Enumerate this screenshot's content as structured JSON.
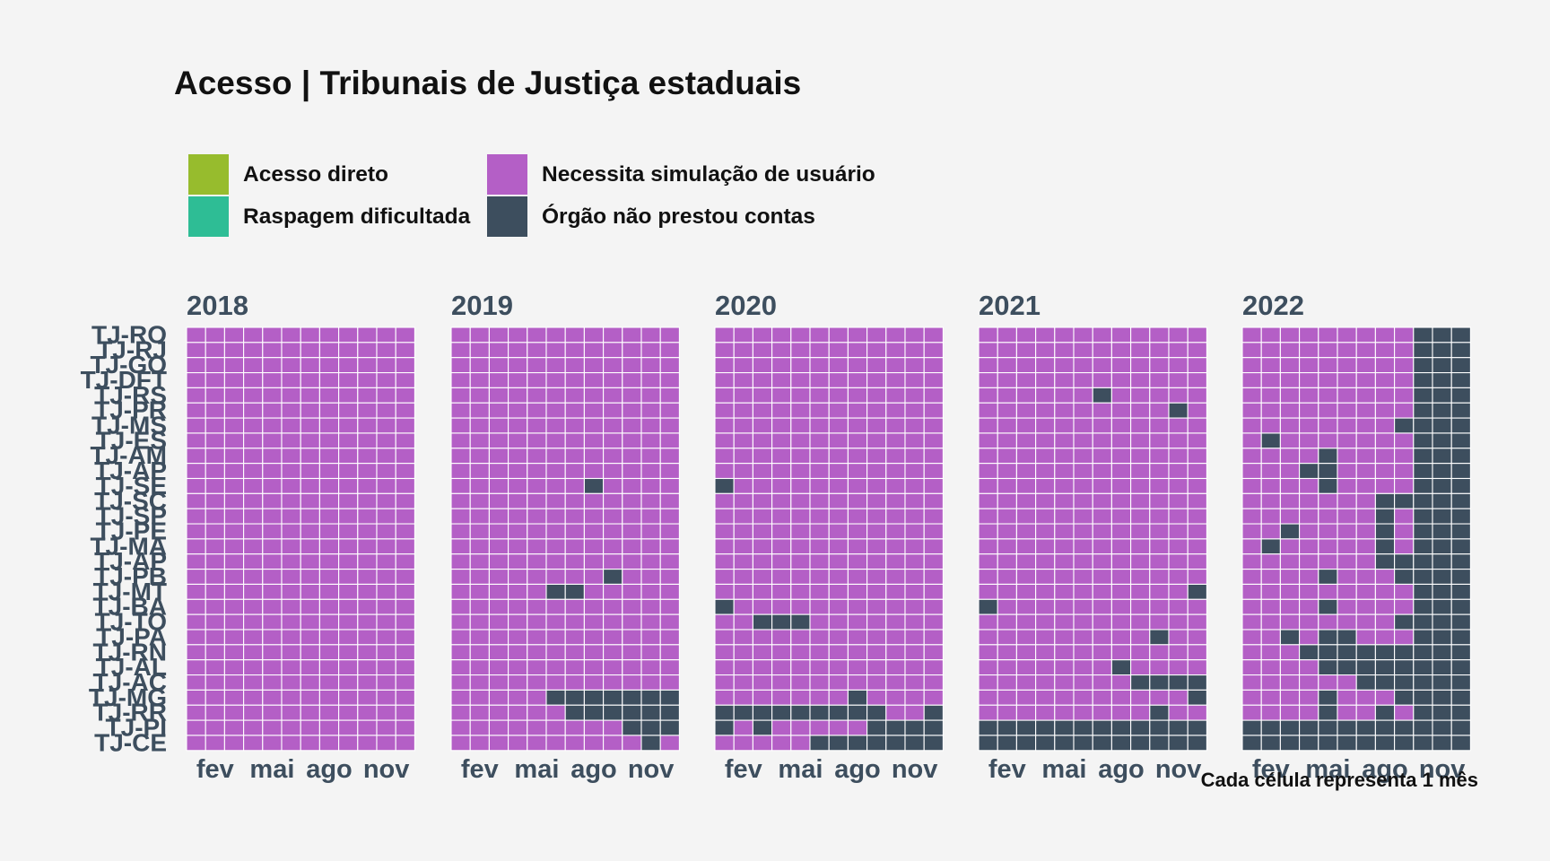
{
  "title": "Acesso | Tribunais de Justiça estaduais",
  "caption": "Cada célula representa 1 mês",
  "legend": [
    {
      "label": "Acesso direto",
      "color": "#97bc2d"
    },
    {
      "label": "Raspagem dificultada",
      "color": "#2ebd95"
    },
    {
      "label": "Necessita simulação de usuário",
      "color": "#b45fc6"
    },
    {
      "label": "Órgão não prestou contas",
      "color": "#3d4e5e"
    }
  ],
  "chart_data": {
    "type": "heatmap",
    "years": [
      "2018",
      "2019",
      "2020",
      "2021",
      "2022"
    ],
    "months": [
      1,
      2,
      3,
      4,
      5,
      6,
      7,
      8,
      9,
      10,
      11,
      12
    ],
    "x_tick_labels": [
      {
        "month": 2,
        "label": "fev"
      },
      {
        "month": 5,
        "label": "mai"
      },
      {
        "month": 8,
        "label": "ago"
      },
      {
        "month": 11,
        "label": "nov"
      }
    ],
    "rows": [
      "TJ-RO",
      "TJ-RJ",
      "TJ-GO",
      "TJ-DFT",
      "TJ-RS",
      "TJ-PR",
      "TJ-MS",
      "TJ-ES",
      "TJ-AM",
      "TJ-AP",
      "TJ-SE",
      "TJ-SC",
      "TJ-SP",
      "TJ-PE",
      "TJ-MA",
      "TJ-AP",
      "TJ-PB",
      "TJ-MT",
      "TJ-BA",
      "TJ-TO",
      "TJ-PA",
      "TJ-RN",
      "TJ-AL",
      "TJ-AC",
      "TJ-MG",
      "TJ-RR",
      "TJ-PI",
      "TJ-CE"
    ],
    "categories": {
      "necessita_simulacao": "Necessita simulação de usuário",
      "nao_prestou_contas": "Órgão não prestou contas"
    },
    "default_status": "necessita_simulacao",
    "nao_prestou_contas_cells": {
      "2019": [
        [
          10,
          8
        ],
        [
          17,
          6
        ],
        [
          17,
          7
        ],
        [
          16,
          9
        ],
        [
          24,
          6
        ],
        [
          24,
          7
        ],
        [
          24,
          8
        ],
        [
          24,
          9
        ],
        [
          24,
          10
        ],
        [
          24,
          11
        ],
        [
          24,
          12
        ],
        [
          25,
          7
        ],
        [
          25,
          8
        ],
        [
          25,
          9
        ],
        [
          25,
          10
        ],
        [
          25,
          11
        ],
        [
          25,
          12
        ],
        [
          26,
          10
        ],
        [
          26,
          11
        ],
        [
          26,
          12
        ],
        [
          27,
          11
        ]
      ],
      "2020": [
        [
          10,
          1
        ],
        [
          18,
          1
        ],
        [
          19,
          3
        ],
        [
          19,
          4
        ],
        [
          19,
          5
        ],
        [
          24,
          8
        ],
        [
          25,
          1
        ],
        [
          25,
          2
        ],
        [
          25,
          3
        ],
        [
          25,
          4
        ],
        [
          25,
          5
        ],
        [
          25,
          6
        ],
        [
          25,
          7
        ],
        [
          25,
          8
        ],
        [
          25,
          9
        ],
        [
          25,
          12
        ],
        [
          26,
          1
        ],
        [
          26,
          3
        ],
        [
          26,
          9
        ],
        [
          26,
          10
        ],
        [
          26,
          11
        ],
        [
          26,
          12
        ],
        [
          27,
          6
        ],
        [
          27,
          7
        ],
        [
          27,
          8
        ],
        [
          27,
          9
        ],
        [
          27,
          10
        ],
        [
          27,
          11
        ],
        [
          27,
          12
        ]
      ],
      "2021": [
        [
          4,
          7
        ],
        [
          5,
          11
        ],
        [
          17,
          12
        ],
        [
          18,
          1
        ],
        [
          20,
          10
        ],
        [
          22,
          8
        ],
        [
          23,
          9
        ],
        [
          23,
          10
        ],
        [
          23,
          11
        ],
        [
          23,
          12
        ],
        [
          24,
          12
        ],
        [
          25,
          10
        ],
        [
          26,
          1
        ],
        [
          26,
          2
        ],
        [
          26,
          3
        ],
        [
          26,
          4
        ],
        [
          26,
          5
        ],
        [
          26,
          6
        ],
        [
          26,
          7
        ],
        [
          26,
          8
        ],
        [
          26,
          9
        ],
        [
          26,
          10
        ],
        [
          26,
          11
        ],
        [
          26,
          12
        ],
        [
          27,
          1
        ],
        [
          27,
          2
        ],
        [
          27,
          3
        ],
        [
          27,
          4
        ],
        [
          27,
          5
        ],
        [
          27,
          6
        ],
        [
          27,
          7
        ],
        [
          27,
          8
        ],
        [
          27,
          9
        ],
        [
          27,
          10
        ],
        [
          27,
          11
        ],
        [
          27,
          12
        ]
      ],
      "2022": [
        [
          6,
          9
        ],
        [
          7,
          2
        ],
        [
          8,
          5
        ],
        [
          9,
          4
        ],
        [
          9,
          5
        ],
        [
          10,
          5
        ],
        [
          11,
          8
        ],
        [
          11,
          9
        ],
        [
          12,
          8
        ],
        [
          13,
          3
        ],
        [
          13,
          8
        ],
        [
          14,
          2
        ],
        [
          14,
          8
        ],
        [
          15,
          8
        ],
        [
          15,
          9
        ],
        [
          16,
          5
        ],
        [
          16,
          9
        ],
        [
          18,
          5
        ],
        [
          19,
          9
        ],
        [
          20,
          3
        ],
        [
          20,
          5
        ],
        [
          20,
          6
        ],
        [
          21,
          4
        ],
        [
          21,
          5
        ],
        [
          21,
          6
        ],
        [
          21,
          7
        ],
        [
          21,
          8
        ],
        [
          21,
          9
        ],
        [
          22,
          5
        ],
        [
          22,
          6
        ],
        [
          22,
          7
        ],
        [
          22,
          8
        ],
        [
          22,
          9
        ],
        [
          23,
          7
        ],
        [
          23,
          8
        ],
        [
          23,
          9
        ],
        [
          24,
          5
        ],
        [
          24,
          9
        ],
        [
          25,
          5
        ],
        [
          25,
          8
        ],
        [
          26,
          1
        ],
        [
          26,
          2
        ],
        [
          26,
          3
        ],
        [
          26,
          4
        ],
        [
          26,
          5
        ],
        [
          26,
          6
        ],
        [
          26,
          7
        ],
        [
          26,
          8
        ],
        [
          26,
          9
        ],
        [
          27,
          1
        ],
        [
          27,
          2
        ],
        [
          27,
          3
        ],
        [
          27,
          4
        ],
        [
          27,
          5
        ],
        [
          27,
          6
        ],
        [
          27,
          7
        ],
        [
          27,
          8
        ],
        [
          27,
          9
        ]
      ]
    },
    "nao_prestou_contas_from_month": {
      "2022": 10
    }
  }
}
